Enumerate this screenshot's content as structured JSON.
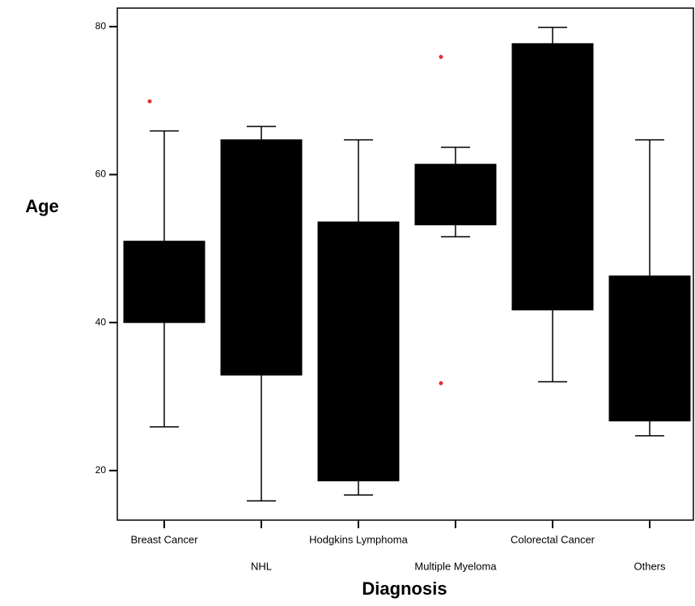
{
  "chart_data": {
    "type": "box",
    "x_label": "Diagnosis",
    "y_label": "Age",
    "categories": [
      "Breast Cancer",
      "NHL",
      "Hodgkins Lymphoma",
      "Multiple Myeloma",
      "Colorectal Cancer",
      "Others"
    ],
    "boxes": [
      {
        "whislo": 25.9,
        "q1": 40,
        "q3": 51.0,
        "whishi": 65.9,
        "outliers": [
          69.9
        ]
      },
      {
        "whislo": 15.9,
        "q1": 32.9,
        "q3": 64.7,
        "whishi": 66.5,
        "outliers": []
      },
      {
        "whislo": 16.7,
        "q1": 18.6,
        "q3": 53.6,
        "whishi": 64.7,
        "outliers": []
      },
      {
        "whislo": 51.6,
        "q1": 53.2,
        "q3": 61.4,
        "whishi": 63.7,
        "outliers": [
          75.9,
          31.8
        ]
      },
      {
        "whislo": 32.0,
        "q1": 41.7,
        "q3": 77.7,
        "whishi": 79.9,
        "outliers": []
      },
      {
        "whislo": 24.7,
        "q1": 26.7,
        "q3": 46.3,
        "whishi": 64.7,
        "outliers": []
      }
    ],
    "color": "#000000",
    "outlier_color": "#e03030",
    "ylim": [
      13.3,
      82.5
    ],
    "yticks": [
      20,
      40,
      60,
      80
    ]
  }
}
